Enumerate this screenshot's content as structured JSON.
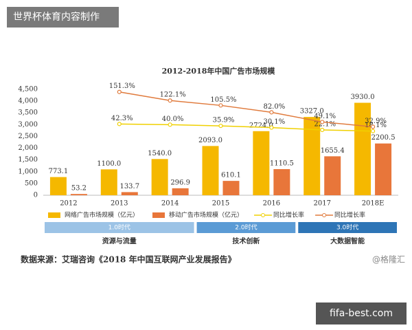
{
  "header": "世界杯体育内容制作",
  "chart_data": {
    "type": "bar",
    "title": "2012-2018年中国广告市场规模",
    "categories": [
      "2012",
      "2013",
      "2014",
      "2015",
      "2016",
      "2017",
      "2018E"
    ],
    "ylim": [
      0,
      4500
    ],
    "yticks": [
      0,
      500,
      {
        "value": 1000,
        "label": "1,000"
      },
      {
        "value": 1500,
        "label": "1,500"
      },
      {
        "value": 2000,
        "label": "2,000"
      },
      {
        "value": 2500,
        "label": "2,500"
      },
      {
        "value": 3000,
        "label": "3,000"
      },
      {
        "value": 3500,
        "label": "3,500"
      },
      {
        "value": 4000,
        "label": "4,000"
      },
      {
        "value": 4500,
        "label": "4,500"
      }
    ],
    "y2lim": [
      -200,
      160
    ],
    "series": [
      {
        "name": "网络广告市场规模（亿元）",
        "color": "#f5b800",
        "type": "bar",
        "values": [
          773.1,
          1100.0,
          1540.0,
          2093.0,
          2724.0,
          3327.0,
          3930.0
        ],
        "value_labels": [
          "773.1",
          "1100.0",
          "1540.0",
          "2093.0",
          "2724.0",
          "3327.0",
          "3930.0"
        ]
      },
      {
        "name": "移动广告市场规模（亿元）",
        "color": "#e8763a",
        "type": "bar",
        "values": [
          53.2,
          133.7,
          296.9,
          610.1,
          1110.5,
          1655.4,
          2200.5
        ],
        "value_labels": [
          "53.2",
          "133.7",
          "296.9",
          "610.1",
          "1110.5",
          "1655.4",
          "2200.5"
        ]
      },
      {
        "name": "同比增长率",
        "color": "#f0d000",
        "type": "line",
        "axis": "y2",
        "values": [
          null,
          42.3,
          40.0,
          35.9,
          30.1,
          22.1,
          18.1
        ],
        "value_labels": [
          null,
          "42.3%",
          "40.0%",
          "35.9%",
          "30.1%",
          "22.1%",
          "18.1%"
        ]
      },
      {
        "name": "同比增长率",
        "color": "#e07a3c",
        "type": "line",
        "axis": "y2",
        "values": [
          null,
          151.3,
          122.1,
          105.5,
          82.0,
          49.1,
          32.9
        ],
        "value_labels": [
          null,
          "151.3%",
          "122.1%",
          "105.5%",
          "82.0%",
          "49.1%",
          "32.9%"
        ]
      }
    ],
    "eras": [
      {
        "label": "1.0时代",
        "caption": "资源与流量"
      },
      {
        "label": "2.0时代",
        "caption": "技术创新"
      },
      {
        "label": "3.0时代",
        "caption": "大数据智能"
      }
    ]
  },
  "source": "数据来源：艾瑞咨询《2018 年中国互联网产业发展报告》",
  "watermark": "@格隆汇",
  "footer": "fifa-best.com"
}
